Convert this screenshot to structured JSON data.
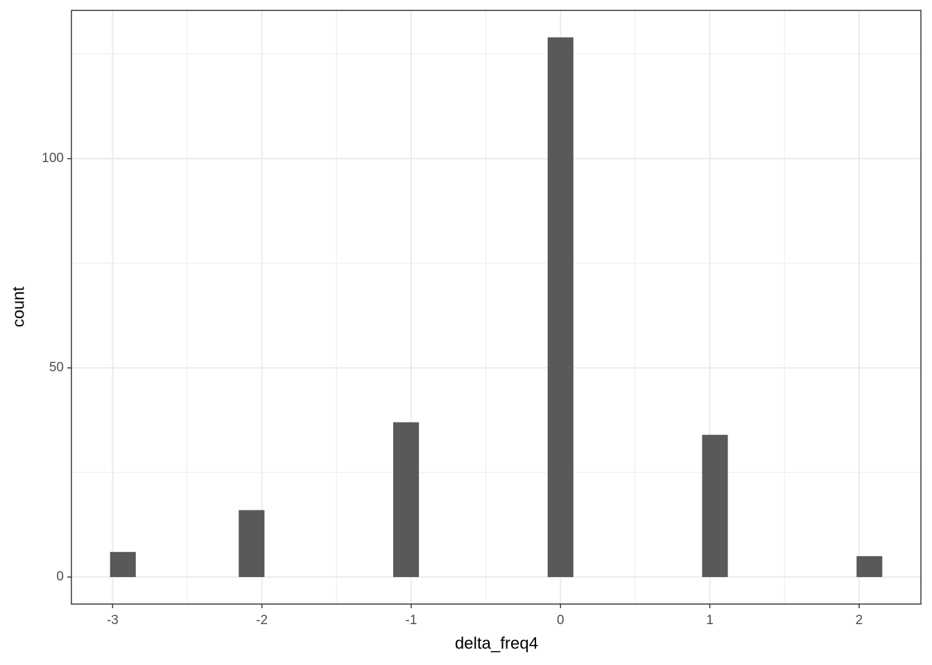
{
  "chart_data": {
    "type": "histogram",
    "x_label": "delta_freq4",
    "y_label": "count",
    "bins": [
      -3.0172,
      -2.8448,
      -2.6724,
      -2.5,
      -2.3276,
      -2.1552,
      -1.9828,
      -1.8103,
      -1.6379,
      -1.4655,
      -1.2931,
      -1.1207,
      -0.9483,
      -0.7759,
      -0.6034,
      -0.431,
      -0.2586,
      -0.0862,
      0.0862,
      0.2586,
      0.431,
      0.6034,
      0.7759,
      0.9483,
      1.1207,
      1.2931,
      1.4655,
      1.6379,
      1.8103,
      1.9828,
      2.1552
    ],
    "values": [
      6,
      0,
      0,
      0,
      0,
      16,
      0,
      0,
      0,
      0,
      0,
      37,
      0,
      0,
      0,
      0,
      0,
      129,
      0,
      0,
      0,
      0,
      0,
      34,
      0,
      0,
      0,
      0,
      0,
      5
    ],
    "color": "#595959",
    "xlim": [
      -3.2759,
      2.4138
    ],
    "xticks": [
      -3,
      -2,
      -1,
      0,
      1,
      2
    ],
    "ylim": [
      -6.45,
      135.45
    ],
    "yticks": [
      0,
      50,
      100
    ],
    "grid": true
  }
}
